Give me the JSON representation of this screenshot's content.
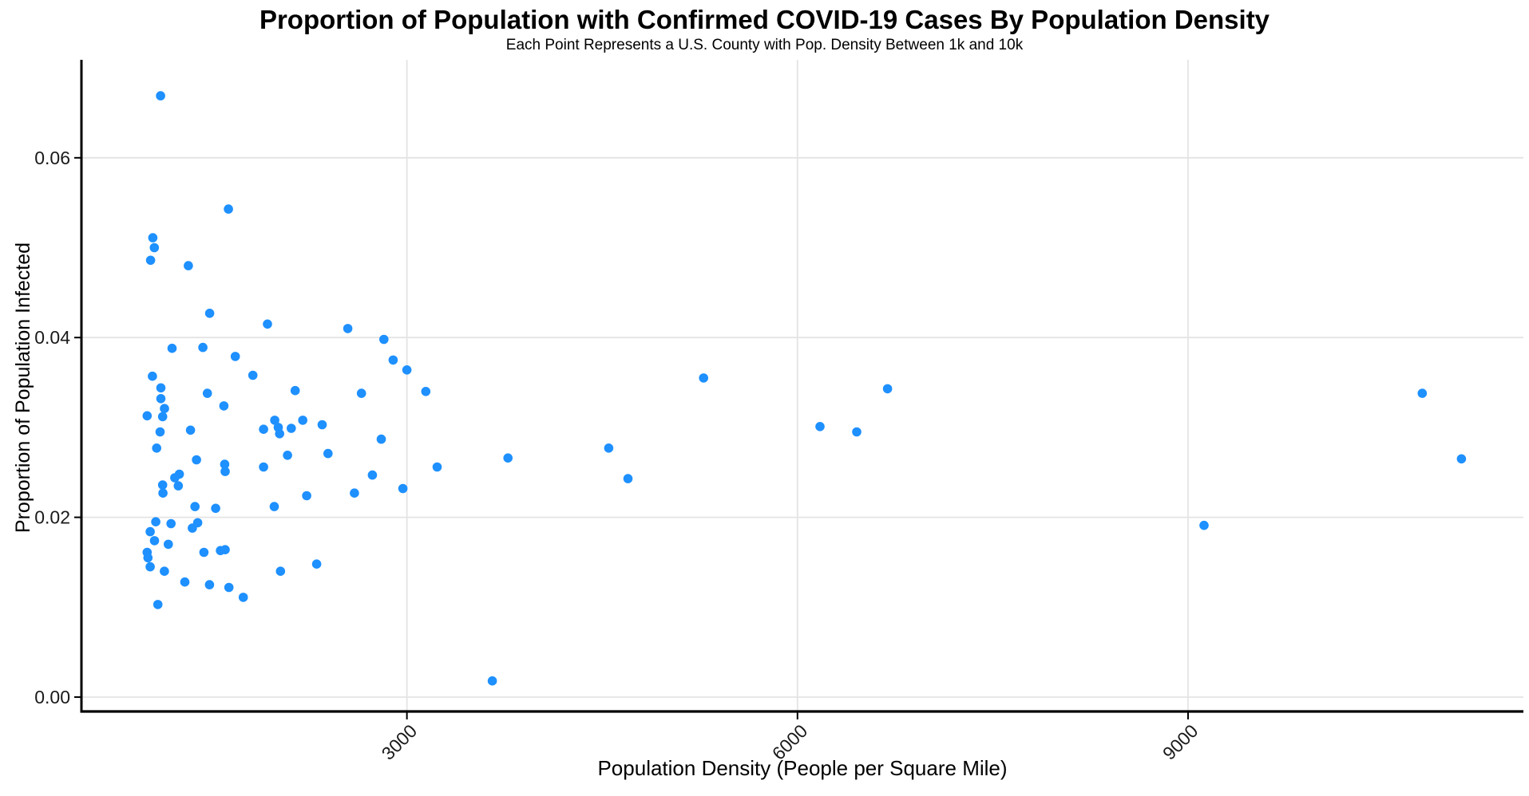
{
  "chart_data": {
    "type": "scatter",
    "title": "Proportion of Population with Confirmed COVID-19 Cases By Population Density",
    "subtitle": "Each Point Represents a U.S. County with Pop. Density Between 1k and 10k",
    "xlabel": "Population Density (People per Square Mile)",
    "ylabel": "Proportion of Population Infected",
    "legend": "none",
    "grid": "major",
    "point_color": "#1E90FF",
    "grid_color": "#E4E4E4",
    "axis_color": "#000000",
    "tick_text_color": "#1a1a1a",
    "xlim": [
      500,
      11576
    ],
    "ylim": [
      -0.0016,
      0.0709
    ],
    "x_ticks": [
      {
        "value": 3000,
        "label": "3000"
      },
      {
        "value": 6000,
        "label": "6000"
      },
      {
        "value": 9000,
        "label": "9000"
      }
    ],
    "y_ticks": [
      {
        "value": 0.0,
        "label": "0.00"
      },
      {
        "value": 0.02,
        "label": "0.02"
      },
      {
        "value": 0.04,
        "label": "0.04"
      },
      {
        "value": 0.06,
        "label": "0.06"
      }
    ],
    "points": [
      [
        1108,
        0.0669
      ],
      [
        1629,
        0.0543
      ],
      [
        1048,
        0.0511
      ],
      [
        1060,
        0.05
      ],
      [
        1031,
        0.0486
      ],
      [
        1321,
        0.048
      ],
      [
        1485,
        0.0427
      ],
      [
        1196,
        0.0388
      ],
      [
        1433,
        0.0389
      ],
      [
        1682,
        0.0379
      ],
      [
        1045,
        0.0357
      ],
      [
        1110,
        0.0344
      ],
      [
        1467,
        0.0338
      ],
      [
        1594,
        0.0324
      ],
      [
        1110,
        0.0332
      ],
      [
        1138,
        0.0321
      ],
      [
        1124,
        0.0312
      ],
      [
        1005,
        0.0313
      ],
      [
        1104,
        0.0295
      ],
      [
        1338,
        0.0297
      ],
      [
        1078,
        0.0277
      ],
      [
        1384,
        0.0264
      ],
      [
        1600,
        0.0259
      ],
      [
        1604,
        0.0251
      ],
      [
        1217,
        0.0244
      ],
      [
        1252,
        0.0248
      ],
      [
        1124,
        0.0236
      ],
      [
        1244,
        0.0235
      ],
      [
        1126,
        0.0227
      ],
      [
        1372,
        0.0212
      ],
      [
        1531,
        0.021
      ],
      [
        1071,
        0.0195
      ],
      [
        1188,
        0.0193
      ],
      [
        1028,
        0.0184
      ],
      [
        1352,
        0.0188
      ],
      [
        1393,
        0.0194
      ],
      [
        1061,
        0.0174
      ],
      [
        1167,
        0.017
      ],
      [
        1005,
        0.0161
      ],
      [
        1011,
        0.0155
      ],
      [
        1441,
        0.0161
      ],
      [
        1568,
        0.0163
      ],
      [
        1604,
        0.0164
      ],
      [
        1028,
        0.0145
      ],
      [
        1137,
        0.014
      ],
      [
        1294,
        0.0128
      ],
      [
        1484,
        0.0125
      ],
      [
        1633,
        0.0122
      ],
      [
        1743,
        0.0111
      ],
      [
        1087,
        0.0103
      ],
      [
        1929,
        0.0415
      ],
      [
        2546,
        0.041
      ],
      [
        2823,
        0.0398
      ],
      [
        2894,
        0.0375
      ],
      [
        3000,
        0.0364
      ],
      [
        1817,
        0.0358
      ],
      [
        2142,
        0.0341
      ],
      [
        2651,
        0.0338
      ],
      [
        1899,
        0.0298
      ],
      [
        1985,
        0.0308
      ],
      [
        2012,
        0.03
      ],
      [
        2022,
        0.0293
      ],
      [
        2112,
        0.0299
      ],
      [
        2200,
        0.0308
      ],
      [
        2349,
        0.0303
      ],
      [
        2803,
        0.0287
      ],
      [
        2394,
        0.0271
      ],
      [
        2083,
        0.0269
      ],
      [
        1899,
        0.0256
      ],
      [
        2735,
        0.0247
      ],
      [
        2969,
        0.0232
      ],
      [
        2597,
        0.0227
      ],
      [
        2230,
        0.0224
      ],
      [
        1981,
        0.0212
      ],
      [
        2307,
        0.0148
      ],
      [
        2029,
        0.014
      ],
      [
        3145,
        0.034
      ],
      [
        3232,
        0.0256
      ],
      [
        3776,
        0.0266
      ],
      [
        4550,
        0.0277
      ],
      [
        4698,
        0.0243
      ],
      [
        5279,
        0.0355
      ],
      [
        6173,
        0.0301
      ],
      [
        6455,
        0.0295
      ],
      [
        6692,
        0.0343
      ],
      [
        9123,
        0.0191
      ],
      [
        10799,
        0.0338
      ],
      [
        11100,
        0.0265
      ],
      [
        3656,
        0.0018
      ]
    ]
  }
}
